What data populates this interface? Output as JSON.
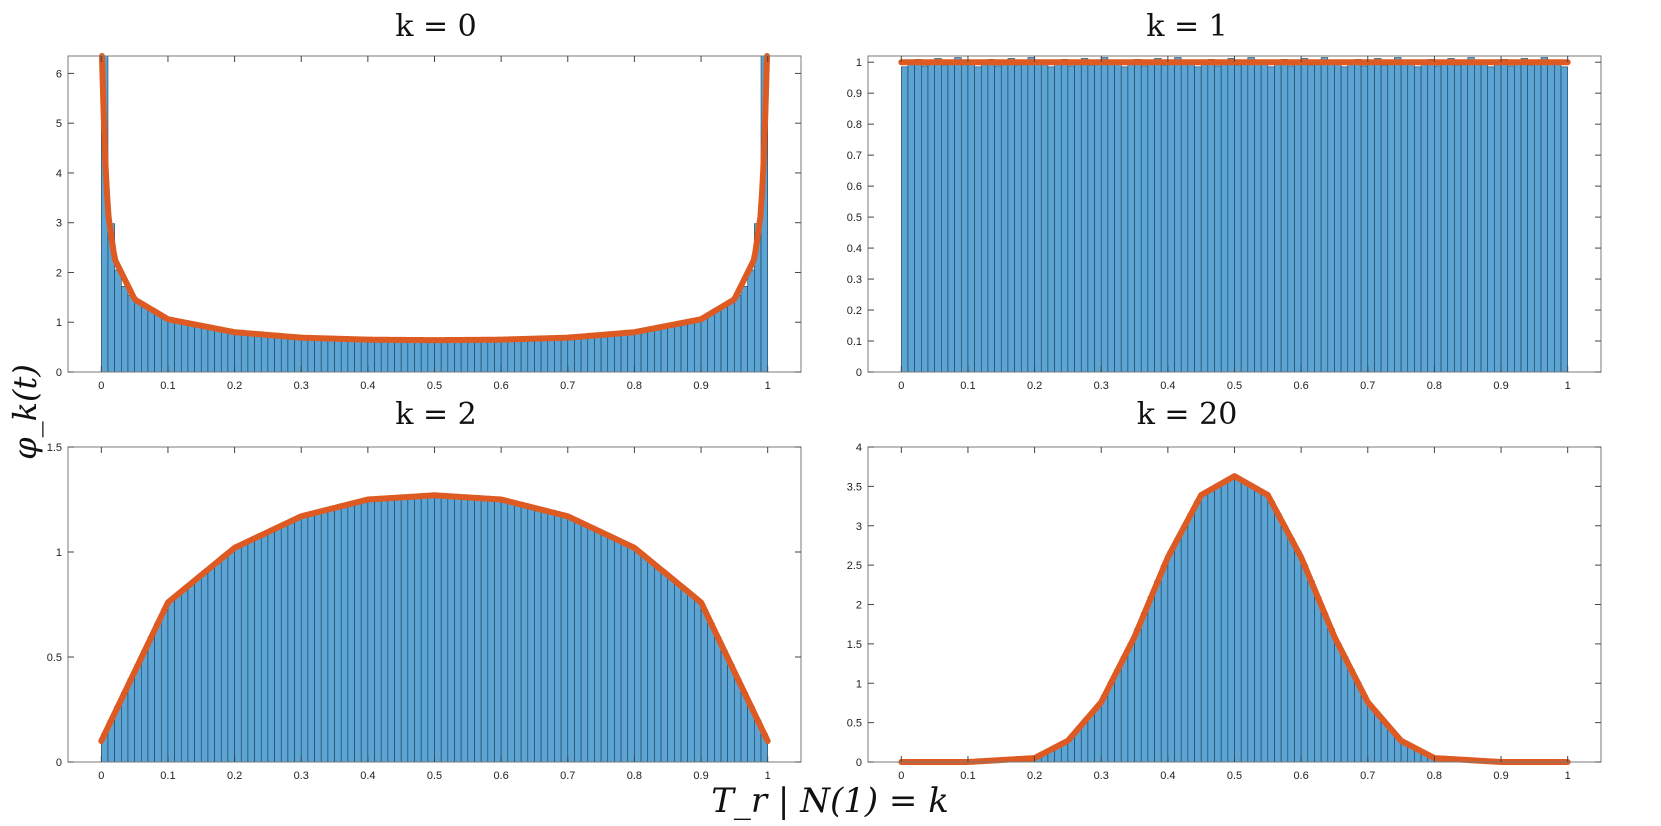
{
  "figure": {
    "xlabel": "T_r | N(1) = k",
    "ylabel": "φ_k(t)"
  },
  "colors": {
    "bar_fill": "#5ba4d4",
    "bar_edge": "#1d3d55",
    "curve": "#dd5a22",
    "axis": "#7a7a7a"
  },
  "chart_data": [
    {
      "type": "bar",
      "title": "k = 0",
      "k": 0,
      "xlim": [
        -0.05,
        1.05
      ],
      "ylim": [
        0,
        6.35
      ],
      "xticks": [
        "0",
        "0.1",
        "0.2",
        "0.3",
        "0.4",
        "0.5",
        "0.6",
        "0.7",
        "0.8",
        "0.9",
        "1"
      ],
      "yticks": [
        "0",
        "1",
        "2",
        "3",
        "4",
        "5",
        "6"
      ],
      "bins": 100,
      "series": [
        {
          "name": "histogram",
          "kind": "histogram",
          "x": [
            0.005,
            0.015,
            0.025,
            0.035,
            0.05,
            0.1,
            0.2,
            0.3,
            0.4,
            0.5,
            0.6,
            0.7,
            0.8,
            0.9,
            0.95,
            0.965,
            0.975,
            0.985,
            0.995
          ],
          "values": [
            6.35,
            2.98,
            2.05,
            1.72,
            1.45,
            1.06,
            0.8,
            0.69,
            0.65,
            0.64,
            0.65,
            0.69,
            0.8,
            1.06,
            1.45,
            1.72,
            2.05,
            2.98,
            6.35
          ]
        },
        {
          "name": "density",
          "kind": "curve",
          "x": [
            0.001,
            0.005,
            0.01,
            0.02,
            0.05,
            0.1,
            0.2,
            0.3,
            0.4,
            0.5,
            0.6,
            0.7,
            0.8,
            0.9,
            0.95,
            0.98,
            0.99,
            0.995,
            0.999
          ],
          "values": [
            6.35,
            4.5,
            3.2,
            2.27,
            1.46,
            1.06,
            0.8,
            0.69,
            0.65,
            0.64,
            0.65,
            0.69,
            0.8,
            1.06,
            1.46,
            2.27,
            3.2,
            4.5,
            6.35
          ]
        }
      ]
    },
    {
      "type": "bar",
      "title": "k = 1",
      "k": 1,
      "xlim": [
        -0.05,
        1.05
      ],
      "ylim": [
        0,
        1.02
      ],
      "xticks": [
        "0",
        "0.1",
        "0.2",
        "0.3",
        "0.4",
        "0.5",
        "0.6",
        "0.7",
        "0.8",
        "0.9",
        "1"
      ],
      "yticks": [
        "0",
        "0.1",
        "0.2",
        "0.3",
        "0.4",
        "0.5",
        "0.6",
        "0.7",
        "0.8",
        "0.9",
        "1"
      ],
      "bins": 100,
      "series": [
        {
          "name": "histogram",
          "kind": "histogram",
          "x": [
            0.0,
            0.1,
            0.2,
            0.3,
            0.4,
            0.5,
            0.6,
            0.7,
            0.8,
            0.9,
            1.0
          ],
          "values": [
            1.0,
            1.0,
            1.0,
            1.0,
            1.0,
            1.0,
            1.0,
            1.0,
            1.0,
            1.0,
            1.0
          ]
        },
        {
          "name": "density",
          "kind": "curve",
          "x": [
            0.0,
            1.0
          ],
          "values": [
            1.0,
            1.0
          ]
        }
      ]
    },
    {
      "type": "bar",
      "title": "k = 2",
      "k": 2,
      "xlim": [
        -0.05,
        1.05
      ],
      "ylim": [
        0,
        1.5
      ],
      "xticks": [
        "0",
        "0.1",
        "0.2",
        "0.3",
        "0.4",
        "0.5",
        "0.6",
        "0.7",
        "0.8",
        "0.9",
        "1"
      ],
      "yticks": [
        "0",
        "0.5",
        "1",
        "1.5"
      ],
      "bins": 100,
      "series": [
        {
          "name": "histogram",
          "kind": "histogram",
          "x": [
            0.0,
            0.1,
            0.2,
            0.3,
            0.4,
            0.5,
            0.6,
            0.7,
            0.8,
            0.9,
            1.0
          ],
          "values": [
            0.1,
            0.76,
            1.02,
            1.17,
            1.25,
            1.27,
            1.25,
            1.17,
            1.02,
            0.76,
            0.1
          ]
        },
        {
          "name": "density",
          "kind": "curve",
          "x": [
            0.0,
            0.1,
            0.2,
            0.3,
            0.4,
            0.5,
            0.6,
            0.7,
            0.8,
            0.9,
            1.0
          ],
          "values": [
            0.1,
            0.76,
            1.02,
            1.17,
            1.25,
            1.27,
            1.25,
            1.17,
            1.02,
            0.76,
            0.1
          ]
        }
      ]
    },
    {
      "type": "bar",
      "title": "k = 20",
      "k": 20,
      "xlim": [
        -0.05,
        1.05
      ],
      "ylim": [
        0,
        4
      ],
      "xticks": [
        "0",
        "0.1",
        "0.2",
        "0.3",
        "0.4",
        "0.5",
        "0.6",
        "0.7",
        "0.8",
        "0.9",
        "1"
      ],
      "yticks": [
        "0",
        "0.5",
        "1",
        "1.5",
        "2",
        "2.5",
        "3",
        "3.5",
        "4"
      ],
      "bins": 100,
      "series": [
        {
          "name": "histogram",
          "kind": "histogram",
          "x": [
            0.0,
            0.1,
            0.2,
            0.25,
            0.3,
            0.35,
            0.4,
            0.45,
            0.5,
            0.55,
            0.6,
            0.65,
            0.7,
            0.75,
            0.8,
            0.9,
            1.0
          ],
          "values": [
            0.0,
            0.0,
            0.05,
            0.27,
            0.76,
            1.59,
            2.6,
            3.39,
            3.63,
            3.39,
            2.6,
            1.59,
            0.76,
            0.27,
            0.05,
            0.0,
            0.0
          ]
        },
        {
          "name": "density",
          "kind": "curve",
          "x": [
            0.0,
            0.1,
            0.2,
            0.25,
            0.3,
            0.35,
            0.4,
            0.45,
            0.5,
            0.55,
            0.6,
            0.65,
            0.7,
            0.75,
            0.8,
            0.9,
            1.0
          ],
          "values": [
            0.0,
            0.0,
            0.05,
            0.27,
            0.76,
            1.59,
            2.6,
            3.39,
            3.63,
            3.39,
            2.6,
            1.59,
            0.76,
            0.27,
            0.05,
            0.0,
            0.0
          ]
        }
      ]
    }
  ]
}
